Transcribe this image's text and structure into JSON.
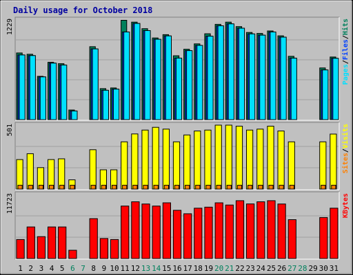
{
  "title": "Daily usage for October 2018",
  "colors": {
    "background": "#c0c0c0",
    "plot_bg": "#c0c0c0",
    "title": "#0000a0",
    "hits": "#00805c",
    "files": "#0040ff",
    "pages": "#00e0ff",
    "visits": "#ffff00",
    "sites": "#ff8000",
    "kbytes": "#ff0000",
    "weekend_label": "#00805c",
    "weekday_label": "#000000"
  },
  "chart_data": [
    {
      "type": "bar",
      "title": "Daily usage for October 2018",
      "panel": "top",
      "axis_max_label": "1229",
      "ylim": [
        0,
        1229
      ],
      "grid": true,
      "right_labels": [
        {
          "text": "Pages",
          "color": "#00e0ff"
        },
        {
          "text": "/",
          "color": "#000000"
        },
        {
          "text": "Files",
          "color": "#0040ff"
        },
        {
          "text": "/",
          "color": "#000000"
        },
        {
          "text": "Hits",
          "color": "#00805c"
        }
      ],
      "categories": [
        "1",
        "2",
        "3",
        "4",
        "5",
        "6",
        "7",
        "8",
        "9",
        "10",
        "11",
        "12",
        "13",
        "14",
        "15",
        "16",
        "17",
        "18",
        "19",
        "20",
        "21",
        "22",
        "23",
        "24",
        "25",
        "26",
        "27",
        "28",
        "29",
        "30",
        "31"
      ],
      "series": [
        {
          "name": "Hits",
          "values": [
            822,
            806,
            534,
            707,
            690,
            119,
            0,
            899,
            382,
            391,
            1225,
            1202,
            1121,
            1007,
            1048,
            787,
            868,
            934,
            1059,
            1175,
            1202,
            1147,
            1075,
            1063,
            1093,
            1033,
            781,
            0,
            0,
            637,
            772
          ]
        },
        {
          "name": "Files",
          "values": [
            798,
            790,
            527,
            697,
            673,
            107,
            0,
            872,
            362,
            376,
            1081,
            1186,
            1098,
            991,
            1032,
            759,
            851,
            915,
            1029,
            1157,
            1181,
            1127,
            1057,
            1042,
            1081,
            1017,
            758,
            0,
            0,
            613,
            756
          ]
        },
        {
          "name": "Pages",
          "values": [
            798,
            790,
            527,
            697,
            673,
            107,
            0,
            872,
            362,
            376,
            1081,
            1186,
            1098,
            991,
            1032,
            759,
            851,
            915,
            1029,
            1157,
            1181,
            1127,
            1057,
            1042,
            1081,
            1017,
            758,
            0,
            0,
            613,
            756
          ]
        }
      ]
    },
    {
      "type": "bar",
      "panel": "middle",
      "axis_max_label": "501",
      "ylim": [
        0,
        501
      ],
      "grid": true,
      "right_labels": [
        {
          "text": "Sites",
          "color": "#ff8000"
        },
        {
          "text": "/",
          "color": "#000000"
        },
        {
          "text": "Visits",
          "color": "#ffff00"
        }
      ],
      "categories": [
        "1",
        "2",
        "3",
        "4",
        "5",
        "6",
        "7",
        "8",
        "9",
        "10",
        "11",
        "12",
        "13",
        "14",
        "15",
        "16",
        "17",
        "18",
        "19",
        "20",
        "21",
        "22",
        "23",
        "24",
        "25",
        "26",
        "27",
        "28",
        "29",
        "30",
        "31"
      ],
      "series": [
        {
          "name": "Visits",
          "values": [
            231,
            277,
            168,
            231,
            237,
            72,
            0,
            308,
            151,
            151,
            370,
            432,
            462,
            484,
            470,
            370,
            424,
            455,
            462,
            501,
            501,
            493,
            462,
            470,
            493,
            455,
            370,
            0,
            0,
            370,
            431
          ]
        },
        {
          "name": "Sites",
          "values": [
            30,
            30,
            30,
            30,
            30,
            30,
            0,
            30,
            30,
            30,
            30,
            30,
            30,
            30,
            30,
            30,
            30,
            30,
            30,
            30,
            30,
            30,
            30,
            30,
            30,
            30,
            30,
            0,
            0,
            30,
            30
          ]
        }
      ]
    },
    {
      "type": "bar",
      "panel": "bottom",
      "axis_max_label": "11723",
      "ylim": [
        0,
        11723
      ],
      "grid": true,
      "right_labels": [
        {
          "text": "KBytes",
          "color": "#ff0000"
        }
      ],
      "categories": [
        "1",
        "2",
        "3",
        "4",
        "5",
        "6",
        "7",
        "8",
        "9",
        "10",
        "11",
        "12",
        "13",
        "14",
        "15",
        "16",
        "17",
        "18",
        "19",
        "20",
        "21",
        "22",
        "23",
        "24",
        "25",
        "26",
        "27",
        "28",
        "29",
        "30",
        "31"
      ],
      "series": [
        {
          "name": "KBytes",
          "values": [
            3478,
            5786,
            4009,
            5786,
            5786,
            1508,
            0,
            7316,
            3671,
            3478,
            9612,
            10402,
            9999,
            9612,
            10209,
            8842,
            8205,
            9222,
            9419,
            10209,
            9807,
            10598,
            10013,
            10402,
            10598,
            9999,
            7122,
            0,
            0,
            7508,
            9222
          ]
        }
      ]
    }
  ],
  "x_labels": [
    {
      "text": "1",
      "weekend": false
    },
    {
      "text": "2",
      "weekend": false
    },
    {
      "text": "3",
      "weekend": false
    },
    {
      "text": "4",
      "weekend": false
    },
    {
      "text": "5",
      "weekend": false
    },
    {
      "text": "6",
      "weekend": true
    },
    {
      "text": "7",
      "weekend": true
    },
    {
      "text": "8",
      "weekend": false
    },
    {
      "text": "9",
      "weekend": false
    },
    {
      "text": "10",
      "weekend": false
    },
    {
      "text": "11",
      "weekend": false
    },
    {
      "text": "12",
      "weekend": false
    },
    {
      "text": "13",
      "weekend": true
    },
    {
      "text": "14",
      "weekend": true
    },
    {
      "text": "15",
      "weekend": false
    },
    {
      "text": "16",
      "weekend": false
    },
    {
      "text": "17",
      "weekend": false
    },
    {
      "text": "18",
      "weekend": false
    },
    {
      "text": "19",
      "weekend": false
    },
    {
      "text": "20",
      "weekend": true
    },
    {
      "text": "21",
      "weekend": true
    },
    {
      "text": "22",
      "weekend": false
    },
    {
      "text": "23",
      "weekend": false
    },
    {
      "text": "24",
      "weekend": false
    },
    {
      "text": "25",
      "weekend": false
    },
    {
      "text": "26",
      "weekend": false
    },
    {
      "text": "27",
      "weekend": true
    },
    {
      "text": "28",
      "weekend": true
    },
    {
      "text": "29",
      "weekend": false
    },
    {
      "text": "30",
      "weekend": false
    },
    {
      "text": "31",
      "weekend": false
    }
  ]
}
